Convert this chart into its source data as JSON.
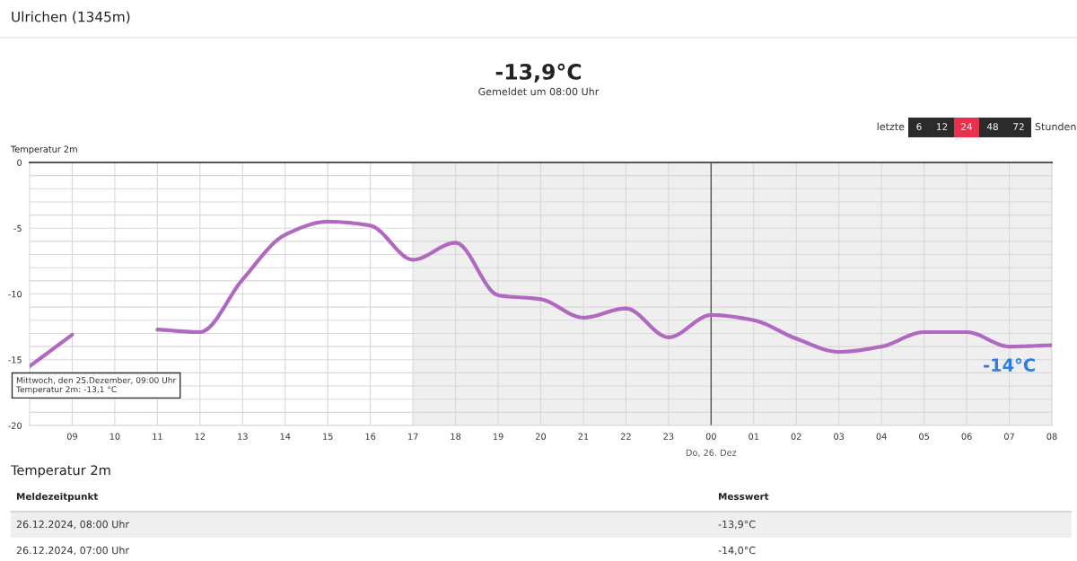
{
  "chart_data": {
    "type": "line",
    "title": "Ulrichen (1345m)",
    "subtitle": "-13,9°C",
    "ylabel": "Temperatur 2m",
    "x": [
      "2024-12-25T08:00",
      "2024-12-25T09:00",
      "2024-12-25T10:00",
      "2024-12-25T11:00",
      "2024-12-25T12:00",
      "2024-12-25T13:00",
      "2024-12-25T14:00",
      "2024-12-25T15:00",
      "2024-12-25T16:00",
      "2024-12-25T17:00",
      "2024-12-25T18:00",
      "2024-12-25T19:00",
      "2024-12-25T20:00",
      "2024-12-25T21:00",
      "2024-12-25T22:00",
      "2024-12-25T23:00",
      "2024-12-26T00:00",
      "2024-12-26T01:00",
      "2024-12-26T02:00",
      "2024-12-26T03:00",
      "2024-12-26T04:00",
      "2024-12-26T05:00",
      "2024-12-26T06:00",
      "2024-12-26T07:00",
      "2024-12-26T08:00"
    ],
    "series": [
      {
        "color": "#b068c0",
        "values": [
          -15.5,
          -13.1,
          null,
          -12.7,
          -12.9,
          -8.9,
          -5.5,
          -4.5,
          -4.8,
          -7.4,
          -6.1,
          -10.1,
          -10.4,
          -11.8,
          -11.1,
          -13.3,
          -11.6,
          -12.0,
          -13.4,
          -14.4,
          -14.0,
          -12.9,
          -12.9,
          -14.0,
          -13.9
        ]
      }
    ],
    "xlim": [
      "2024-12-25T08:00",
      "2024-12-26T08:00"
    ],
    "xticks": [
      {
        "value": "2024-12-25T09:00",
        "label": "09"
      },
      {
        "value": "2024-12-25T10:00",
        "label": "10"
      },
      {
        "value": "2024-12-25T11:00",
        "label": "11"
      },
      {
        "value": "2024-12-25T12:00",
        "label": "12"
      },
      {
        "value": "2024-12-25T13:00",
        "label": "13"
      },
      {
        "value": "2024-12-25T14:00",
        "label": "14"
      },
      {
        "value": "2024-12-25T15:00",
        "label": "15"
      },
      {
        "value": "2024-12-25T16:00",
        "label": "16"
      },
      {
        "value": "2024-12-25T17:00",
        "label": "17"
      },
      {
        "value": "2024-12-25T18:00",
        "label": "18"
      },
      {
        "value": "2024-12-25T19:00",
        "label": "19"
      },
      {
        "value": "2024-12-25T20:00",
        "label": "20"
      },
      {
        "value": "2024-12-25T21:00",
        "label": "21"
      },
      {
        "value": "2024-12-25T22:00",
        "label": "22"
      },
      {
        "value": "2024-12-25T23:00",
        "label": "23"
      },
      {
        "value": "2024-12-26T00:00",
        "label": "00"
      },
      {
        "value": "2024-12-26T01:00",
        "label": "01"
      },
      {
        "value": "2024-12-26T02:00",
        "label": "02"
      },
      {
        "value": "2024-12-26T03:00",
        "label": "03"
      },
      {
        "value": "2024-12-26T04:00",
        "label": "04"
      },
      {
        "value": "2024-12-26T05:00",
        "label": "05"
      },
      {
        "value": "2024-12-26T06:00",
        "label": "06"
      },
      {
        "value": "2024-12-26T07:00",
        "label": "07"
      },
      {
        "value": "2024-12-26T08:00",
        "label": "08"
      }
    ],
    "ylim": [
      -20,
      0
    ],
    "yticks": [
      0,
      {
        "value": -1,
        "label": null
      },
      {
        "value": -2,
        "label": null
      },
      {
        "value": -3,
        "label": null
      },
      {
        "value": -4,
        "label": null
      },
      -5,
      {
        "value": -6,
        "label": null
      },
      {
        "value": -7,
        "label": null
      },
      {
        "value": -8,
        "label": null
      },
      {
        "value": -9,
        "label": null
      },
      -10,
      {
        "value": -11,
        "label": null
      },
      {
        "value": -12,
        "label": null
      },
      {
        "value": -13,
        "label": null
      },
      {
        "value": -14,
        "label": null
      },
      -15,
      {
        "value": -16,
        "label": null
      },
      {
        "value": -17,
        "label": null
      },
      {
        "value": -18,
        "label": null
      },
      {
        "value": -19,
        "label": null
      },
      -20
    ],
    "grid": true,
    "line_style": "solid",
    "bands": [
      {
        "axis": "x",
        "from": "2024-12-25T17:00",
        "to": "2024-12-26T08:00",
        "color": "#efefef"
      }
    ],
    "ref_lines": [
      {
        "axis": "x",
        "value": "2024-12-26T00:00",
        "label": "Do, 26. Dez",
        "color": "#555555"
      }
    ],
    "annotations": [
      "Gemeldet um 08:00 Uhr",
      "letzte",
      "6",
      "12",
      "24",
      "48",
      "72",
      "Stunden",
      "Temperatur 2m",
      "Meldezeitpunkt",
      "Messwert",
      "26.12.2024, 08:00 Uhr",
      "-13,9°C",
      "26.12.2024, 07:00 Uhr",
      "-14,0°C",
      "Mittwoch, den 25.Dezember, 09:00 Uhr\nTemperatur 2m: -13,1 °C",
      {
        "text": "-14°C",
        "x": "2024-12-26T07:00",
        "y": -14
      }
    ]
  }
}
